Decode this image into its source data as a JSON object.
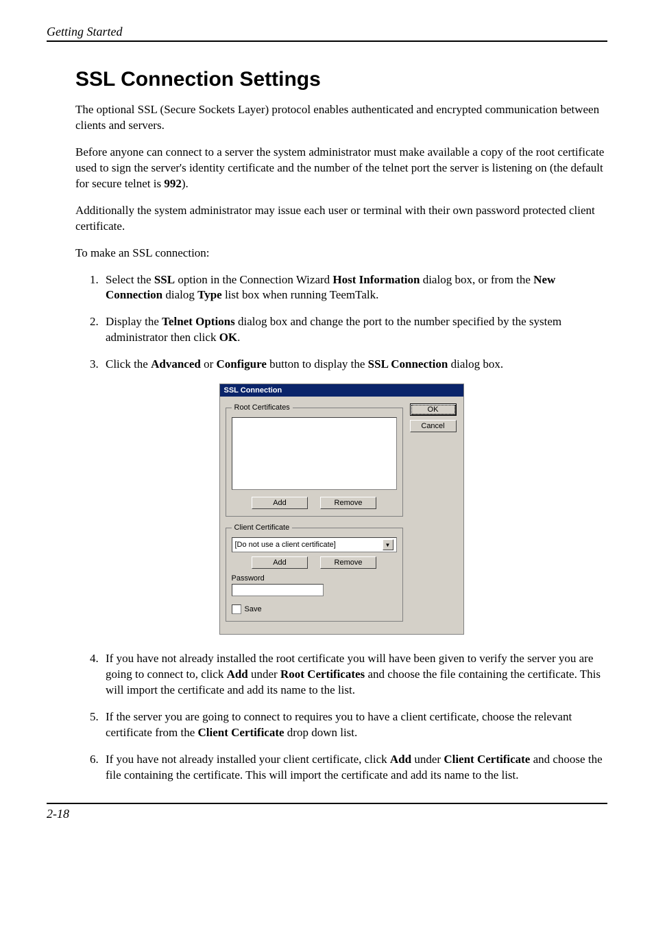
{
  "header": {
    "running": "Getting Started"
  },
  "title": "SSL Connection Settings",
  "paragraphs": {
    "p1": "The optional SSL (Secure Sockets Layer) protocol enables authenticated and encrypted communication between clients and servers.",
    "p2_a": "Before anyone can connect to a server the system administrator must make available a copy of the root certificate used to sign the server's identity certificate and the number of the telnet port the server is listening on (the default for secure telnet is ",
    "p2_bold": "992",
    "p2_b": ").",
    "p3": "Additionally the system administrator may issue each user or terminal with their own password protected client certificate.",
    "p4": "To make an SSL connection:"
  },
  "list": {
    "i1": {
      "a": "Select the ",
      "b1": "SSL",
      "c": " option in the Connection Wizard ",
      "b2": "Host Information",
      "d": " dialog box, or from the ",
      "b3": "New Connection",
      "e": " dialog ",
      "b4": "Type",
      "f": " list box when running TeemTalk."
    },
    "i2": {
      "a": "Display the ",
      "b1": "Telnet Options",
      "c": " dialog box and change the port to the number specified by the system administrator then click ",
      "b2": "OK",
      "d": "."
    },
    "i3": {
      "a": "Click the ",
      "b1": "Advanced",
      "c": " or ",
      "b2": "Configure",
      "d": " button to display the ",
      "b3": "SSL Connection",
      "e": " dialog box."
    },
    "i4": {
      "a": "If you have not already installed the root certificate you will have been given to verify the server you are going to connect to, click ",
      "b1": "Add",
      "c": " under ",
      "b2": "Root Certificates",
      "d": " and choose the file containing the certificate. This will import the certificate and add its name to the list."
    },
    "i5": {
      "a": "If the server you are going to connect to requires you to have a client certificate, choose the relevant certificate from the ",
      "b1": "Client Certificate",
      "c": " drop down list."
    },
    "i6": {
      "a": "If you have not already installed your client certificate, click ",
      "b1": "Add",
      "c": " under ",
      "b2": "Client Certificate",
      "d": " and choose the file containing the certificate. This will import the certificate and add its name to the list."
    }
  },
  "dialog": {
    "title": "SSL Connection",
    "ok": "OK",
    "cancel": "Cancel",
    "group1": "Root Certificates",
    "group2": "Client Certificate",
    "add": "Add",
    "remove": "Remove",
    "combo": "[Do not use a client certificate]",
    "pwlabel": "Password",
    "save": "Save"
  },
  "footer": {
    "pagenum": "2-18"
  }
}
